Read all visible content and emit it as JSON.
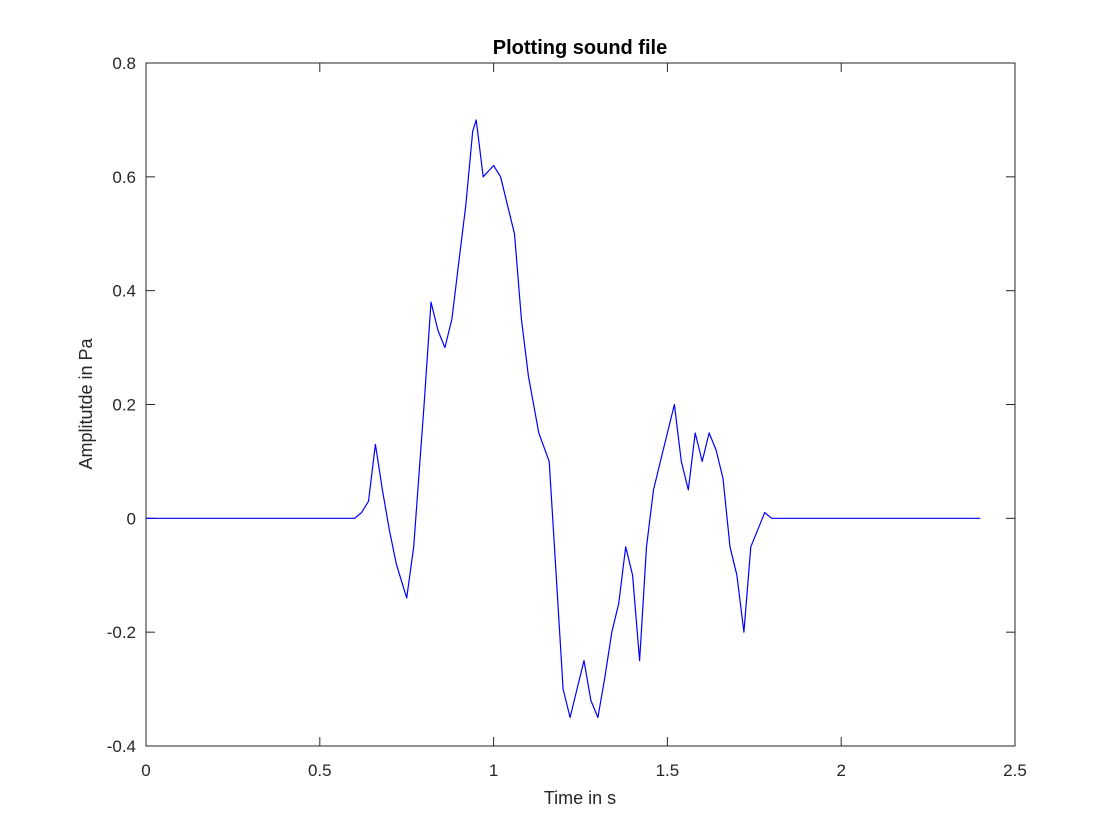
{
  "chart_data": {
    "type": "line",
    "title": "Plotting sound file",
    "xlabel": "Time in s",
    "ylabel": "Amplitutde in Pa",
    "xlim": [
      0,
      2.5
    ],
    "ylim": [
      -0.4,
      0.8
    ],
    "xticks": [
      0,
      0.5,
      1,
      1.5,
      2,
      2.5
    ],
    "xtick_labels": [
      "0",
      "0.5",
      "1",
      "1.5",
      "2",
      "2.5"
    ],
    "yticks": [
      -0.4,
      -0.2,
      0,
      0.2,
      0.4,
      0.6,
      0.8
    ],
    "ytick_labels": [
      "-0.4",
      "-0.2",
      "0",
      "0.2",
      "0.4",
      "0.6",
      "0.8"
    ],
    "grid": false,
    "line_color": "#0000ff",
    "series": [
      {
        "x": [
          0,
          0.6,
          0.62,
          0.64,
          0.66,
          0.68,
          0.7,
          0.72,
          0.74,
          0.75,
          0.77,
          0.8,
          0.82,
          0.84,
          0.86,
          0.88,
          0.9,
          0.92,
          0.94,
          0.95,
          0.97,
          1.0,
          1.02,
          1.04,
          1.06,
          1.08,
          1.1,
          1.13,
          1.16,
          1.18,
          1.2,
          1.22,
          1.24,
          1.26,
          1.28,
          1.3,
          1.32,
          1.34,
          1.36,
          1.38,
          1.4,
          1.42,
          1.44,
          1.46,
          1.48,
          1.5,
          1.52,
          1.54,
          1.56,
          1.58,
          1.6,
          1.62,
          1.64,
          1.66,
          1.68,
          1.7,
          1.72,
          1.74,
          1.76,
          1.78,
          1.8,
          2.4
        ],
        "y": [
          0,
          0,
          0.01,
          0.03,
          0.13,
          0.05,
          -0.02,
          -0.08,
          -0.12,
          -0.14,
          -0.05,
          0.2,
          0.38,
          0.33,
          0.3,
          0.35,
          0.45,
          0.55,
          0.68,
          0.7,
          0.6,
          0.62,
          0.6,
          0.55,
          0.5,
          0.35,
          0.25,
          0.15,
          0.1,
          -0.1,
          -0.3,
          -0.35,
          -0.3,
          -0.25,
          -0.32,
          -0.35,
          -0.28,
          -0.2,
          -0.15,
          -0.05,
          -0.1,
          -0.25,
          -0.05,
          0.05,
          0.1,
          0.15,
          0.2,
          0.1,
          0.05,
          0.15,
          0.1,
          0.15,
          0.12,
          0.07,
          -0.05,
          -0.1,
          -0.2,
          -0.05,
          -0.02,
          0.01,
          0,
          0
        ]
      }
    ]
  }
}
